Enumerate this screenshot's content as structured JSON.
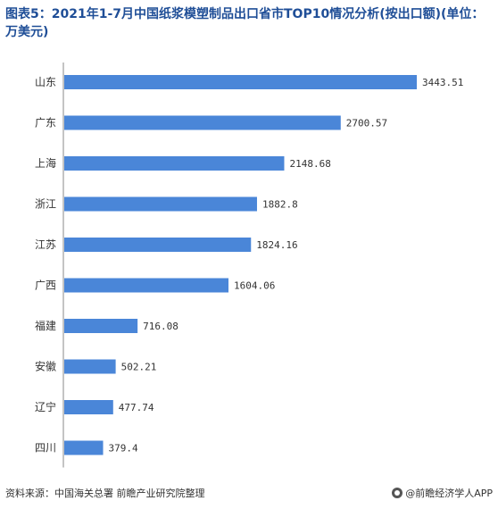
{
  "title": "图表5：2021年1-7月中国纸浆模塑制品出口省市TOP10情况分析(按出口额)(单位：万美元)",
  "footer": {
    "source": "资料来源：中国海关总署 前瞻产业研究院整理",
    "brand": "@前瞻经济学人APP"
  },
  "colors": {
    "bar": "#4a86d8",
    "axis": "#888888"
  },
  "chart_data": {
    "type": "bar",
    "orientation": "horizontal",
    "title": "图表5：2021年1-7月中国纸浆模塑制品出口省市TOP10情况分析(按出口额)(单位：万美元)",
    "categories": [
      "山东",
      "广东",
      "上海",
      "浙江",
      "江苏",
      "广西",
      "福建",
      "安徽",
      "辽宁",
      "四川"
    ],
    "values": [
      3443.51,
      2700.57,
      2148.68,
      1882.8,
      1824.16,
      1604.06,
      716.08,
      502.21,
      477.74,
      379.4
    ],
    "value_labels": [
      "3443.51",
      "2700.57",
      "2148.68",
      "1882.8",
      "1824.16",
      "1604.06",
      "716.08",
      "502.21",
      "477.74",
      "379.4"
    ],
    "xlabel": "",
    "ylabel": "",
    "xlim": [
      0,
      3443.51
    ],
    "grid": false,
    "legend": "none"
  }
}
